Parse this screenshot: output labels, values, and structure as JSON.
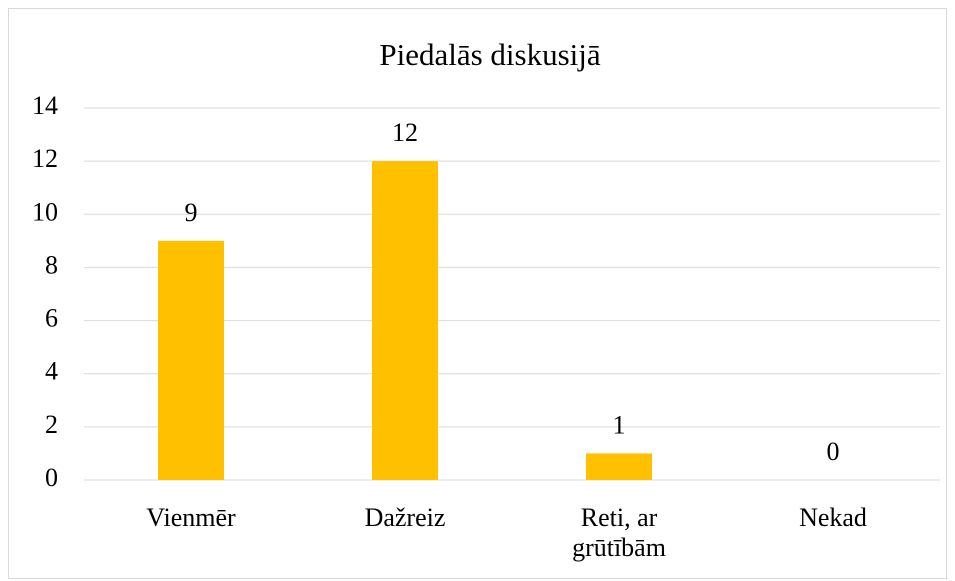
{
  "chart_data": {
    "type": "bar",
    "title": "Piedalās diskusijā",
    "categories": [
      "Vienmēr",
      "Dažreiz",
      "Reti, ar grūtībām",
      "Nekad"
    ],
    "values": [
      9,
      12,
      1,
      0
    ],
    "color": "#ffc000",
    "ylim": [
      0,
      14
    ],
    "yticks": [
      0,
      2,
      4,
      6,
      8,
      10,
      12,
      14
    ],
    "grid": true
  }
}
